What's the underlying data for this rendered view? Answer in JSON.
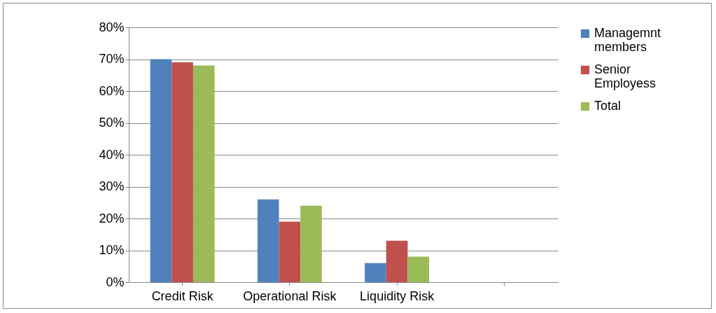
{
  "chart_data": {
    "type": "bar",
    "categories": [
      "Credit Risk",
      "Operational Risk",
      "Liquidity Risk",
      null
    ],
    "series": [
      {
        "name": "Managemnt members",
        "color": "#4f81bd",
        "values": [
          70,
          26,
          6,
          null
        ]
      },
      {
        "name": "Senior Employess",
        "color": "#c0504d",
        "values": [
          69,
          19,
          13,
          null
        ]
      },
      {
        "name": "Total",
        "color": "#9bbb59",
        "values": [
          68,
          24,
          8,
          null
        ]
      }
    ],
    "ylim": [
      0,
      80
    ],
    "yticks": [
      {
        "value": 0,
        "label": "0%"
      },
      {
        "value": 10,
        "label": "10%"
      },
      {
        "value": 20,
        "label": "20%"
      },
      {
        "value": 30,
        "label": "30%"
      },
      {
        "value": 40,
        "label": "40%"
      },
      {
        "value": 50,
        "label": "50%"
      },
      {
        "value": 60,
        "label": "60%"
      },
      {
        "value": 70,
        "label": "70%"
      },
      {
        "value": 80,
        "label": "80%"
      }
    ],
    "grid": "y",
    "legend": "right"
  }
}
